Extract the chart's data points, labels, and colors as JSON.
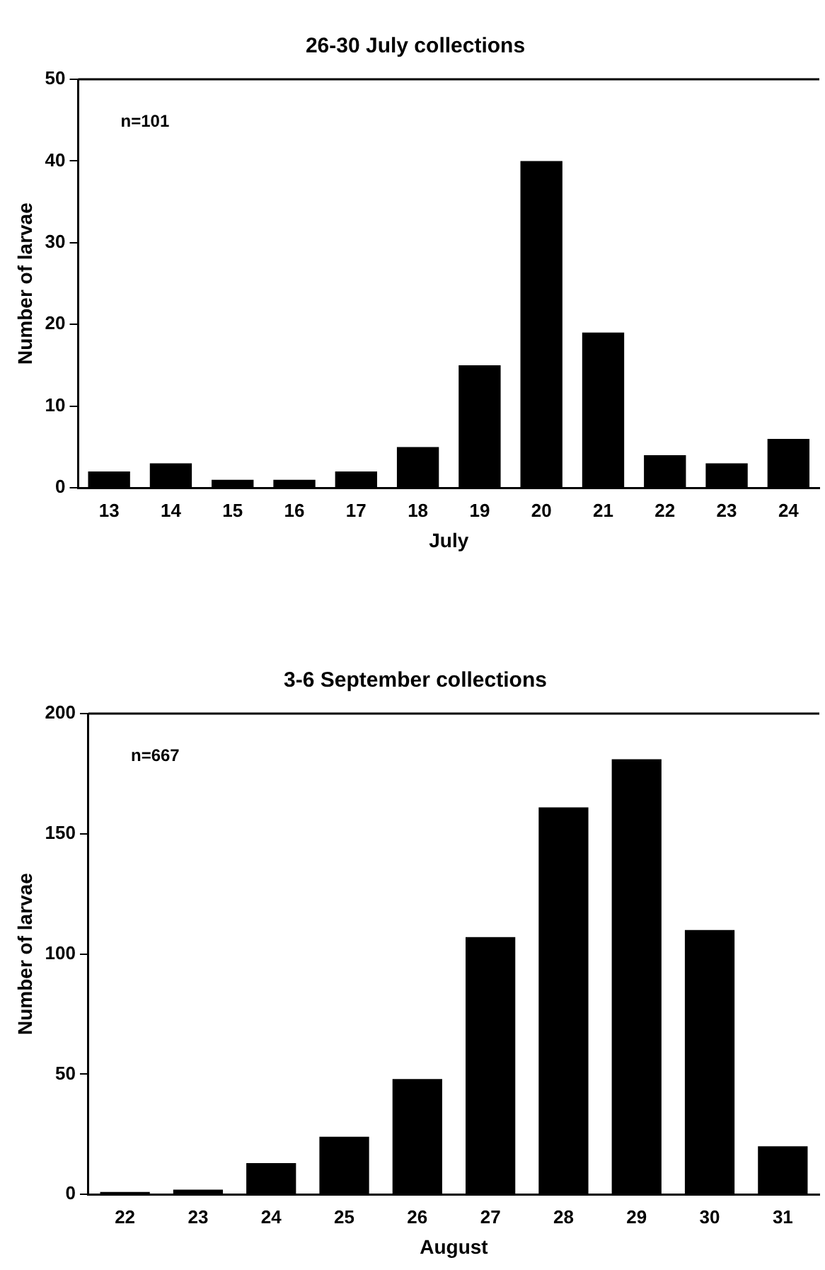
{
  "chart_data": [
    {
      "type": "bar",
      "title": "26-30 July collections",
      "xlabel": "July",
      "ylabel": "Number of larvae",
      "categories": [
        "13",
        "14",
        "15",
        "16",
        "17",
        "18",
        "19",
        "20",
        "21",
        "22",
        "23",
        "24"
      ],
      "values": [
        2,
        3,
        1,
        1,
        2,
        5,
        15,
        40,
        19,
        4,
        3,
        6
      ],
      "color": "#000000",
      "ylim": [
        0,
        50
      ],
      "yticks": [
        0,
        10,
        20,
        30,
        40,
        50
      ],
      "grid": false,
      "legend": false,
      "annotations": [
        "n=101"
      ]
    },
    {
      "type": "bar",
      "title": "3-6 September collections",
      "xlabel": "August",
      "ylabel": "Number of larvae",
      "categories": [
        "22",
        "23",
        "24",
        "25",
        "26",
        "27",
        "28",
        "29",
        "30",
        "31"
      ],
      "values": [
        1,
        2,
        13,
        24,
        48,
        107,
        161,
        181,
        110,
        20
      ],
      "color": "#000000",
      "ylim": [
        0,
        200
      ],
      "yticks": [
        0,
        50,
        100,
        150,
        200
      ],
      "grid": false,
      "legend": false,
      "annotations": [
        "n=667"
      ]
    }
  ]
}
